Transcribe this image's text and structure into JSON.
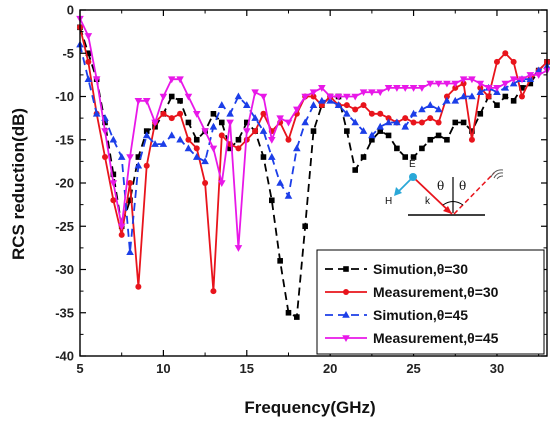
{
  "chart_data": {
    "type": "line",
    "title": "",
    "xlabel": "Frequency(GHz)",
    "ylabel": "RCS reduction(dB)",
    "xlim": [
      5,
      33
    ],
    "ylim": [
      -40,
      0
    ],
    "xticks": [
      5,
      10,
      15,
      20,
      25,
      30
    ],
    "yticks": [
      0,
      -5,
      -10,
      -15,
      -20,
      -25,
      -30,
      -35,
      -40
    ],
    "x_tick_labels": [
      "5",
      "10",
      "15",
      "20",
      "25",
      "30"
    ],
    "y_tick_labels": [
      "0",
      "-5",
      "-10",
      "-15",
      "-20",
      "-25",
      "-30",
      "-35",
      "-40"
    ],
    "grid": false,
    "legend_position": "bottom-right",
    "series": [
      {
        "name": "Simution,θ=30",
        "color": "#000000",
        "dash": "8,5",
        "marker": "square",
        "x": [
          5.0,
          5.5,
          6.0,
          6.5,
          7.0,
          7.5,
          8.0,
          8.5,
          9.0,
          9.5,
          10.0,
          10.5,
          11.0,
          11.5,
          12.0,
          12.5,
          13.0,
          13.5,
          14.0,
          14.5,
          15.0,
          15.5,
          16.0,
          16.5,
          17.0,
          17.5,
          18.0,
          18.5,
          19.0,
          19.5,
          20.0,
          20.5,
          21.0,
          21.5,
          22.0,
          22.5,
          23.0,
          23.5,
          24.0,
          24.5,
          25.0,
          25.5,
          26.0,
          26.5,
          27.0,
          27.5,
          28.0,
          28.5,
          29.0,
          29.5,
          30.0,
          30.5,
          31.0,
          31.5,
          32.0,
          32.5,
          33.0
        ],
        "y": [
          -2,
          -5,
          -8,
          -13,
          -19,
          -25,
          -22,
          -17,
          -14,
          -13.5,
          -12,
          -10,
          -10.5,
          -13,
          -15,
          -14,
          -12,
          -13,
          -16,
          -15,
          -13,
          -14,
          -17,
          -22,
          -29,
          -35,
          -35.5,
          -25,
          -14,
          -11,
          -10,
          -10,
          -14,
          -18.5,
          -17,
          -15,
          -14,
          -14.5,
          -16,
          -17,
          -17,
          -16,
          -15,
          -14.5,
          -15,
          -13,
          -13,
          -14,
          -12,
          -10,
          -11,
          -10,
          -10.5,
          -9,
          -8.5,
          -7,
          -6
        ]
      },
      {
        "name": "Measurement,θ=30",
        "color": "#e8141c",
        "dash": "",
        "marker": "circle",
        "x": [
          5.0,
          5.5,
          6.0,
          6.5,
          7.0,
          7.5,
          8.0,
          8.5,
          9.0,
          9.5,
          10.0,
          10.5,
          11.0,
          11.5,
          12.0,
          12.5,
          13.0,
          13.5,
          14.0,
          14.5,
          15.0,
          15.5,
          16.0,
          16.5,
          17.0,
          17.5,
          18.0,
          18.5,
          19.0,
          19.5,
          20.0,
          20.5,
          21.0,
          21.5,
          22.0,
          22.5,
          23.0,
          23.5,
          24.0,
          24.5,
          25.0,
          25.5,
          26.0,
          26.5,
          27.0,
          27.5,
          28.0,
          28.5,
          29.0,
          29.5,
          30.0,
          30.5,
          31.0,
          31.5,
          32.0,
          32.5,
          33.0
        ],
        "y": [
          -2,
          -6,
          -12,
          -17,
          -22,
          -26,
          -20,
          -32,
          -18,
          -13,
          -12,
          -12.5,
          -12,
          -15,
          -16,
          -20,
          -32.5,
          -14.5,
          -15.5,
          -16,
          -15,
          -14,
          -12,
          -14,
          -13,
          -15,
          -12,
          -10,
          -10,
          -11,
          -10,
          -11,
          -11,
          -11.5,
          -11,
          -12,
          -12,
          -12.5,
          -13,
          -12.5,
          -13,
          -13,
          -12.5,
          -13,
          -10,
          -9,
          -8.5,
          -15,
          -9,
          -10,
          -6,
          -5,
          -6,
          -10,
          -8,
          -7,
          -6
        ]
      },
      {
        "name": "Simution,θ=45",
        "color": "#1c3ee8",
        "dash": "8,5",
        "marker": "triangle",
        "x": [
          5.0,
          5.5,
          6.0,
          6.5,
          7.0,
          7.5,
          8.0,
          8.5,
          9.0,
          9.5,
          10.0,
          10.5,
          11.0,
          11.5,
          12.0,
          12.5,
          13.0,
          13.5,
          14.0,
          14.5,
          15.0,
          15.5,
          16.0,
          16.5,
          17.0,
          17.5,
          18.0,
          18.5,
          19.0,
          19.5,
          20.0,
          20.5,
          21.0,
          21.5,
          22.0,
          22.5,
          23.0,
          23.5,
          24.0,
          24.5,
          25.0,
          25.5,
          26.0,
          26.5,
          27.0,
          27.5,
          28.0,
          28.5,
          29.0,
          29.5,
          30.0,
          30.5,
          31.0,
          31.5,
          32.0,
          32.5,
          33.0
        ],
        "y": [
          -4,
          -8,
          -12,
          -12.5,
          -15,
          -17,
          -28,
          -18,
          -14.5,
          -15.5,
          -15.5,
          -14.5,
          -15,
          -16,
          -17,
          -17.5,
          -13.5,
          -11,
          -12,
          -10,
          -11,
          -12.5,
          -14,
          -17,
          -20,
          -21.5,
          -16,
          -13,
          -11,
          -10.5,
          -10.5,
          -11,
          -12,
          -13,
          -14,
          -14.5,
          -13.5,
          -13,
          -13,
          -13.5,
          -12,
          -11.5,
          -11,
          -11.5,
          -10.5,
          -10.5,
          -10,
          -10,
          -9.5,
          -9,
          -9.5,
          -9,
          -8.5,
          -8,
          -8,
          -7,
          -6.5
        ]
      },
      {
        "name": "Measurement,θ=45",
        "color": "#e818e8",
        "dash": "",
        "marker": "triangle-down",
        "x": [
          5.0,
          5.5,
          6.0,
          6.5,
          7.0,
          7.5,
          8.0,
          8.5,
          9.0,
          9.5,
          10.0,
          10.5,
          11.0,
          11.5,
          12.0,
          12.5,
          13.0,
          13.5,
          14.0,
          14.5,
          15.0,
          15.5,
          16.0,
          16.5,
          17.0,
          17.5,
          18.0,
          18.5,
          19.0,
          19.5,
          20.0,
          20.5,
          21.0,
          21.5,
          22.0,
          22.5,
          23.0,
          23.5,
          24.0,
          24.5,
          25.0,
          25.5,
          26.0,
          26.5,
          27.0,
          27.5,
          28.0,
          28.5,
          29.0,
          29.5,
          30.0,
          30.5,
          31.0,
          31.5,
          32.0,
          32.5,
          33.0
        ],
        "y": [
          -1,
          -3,
          -8,
          -14,
          -20,
          -25,
          -17,
          -10.5,
          -10.5,
          -13,
          -10,
          -8,
          -8,
          -10,
          -12,
          -14,
          -16,
          -20,
          -13,
          -27.5,
          -14,
          -9.5,
          -10,
          -15,
          -12.5,
          -13,
          -11.5,
          -10,
          -9.5,
          -9,
          -10,
          -10,
          -10,
          -10,
          -9.5,
          -9.5,
          -9.5,
          -9,
          -9,
          -9,
          -9,
          -9,
          -8.5,
          -8.5,
          -8.5,
          -8.5,
          -8,
          -8,
          -8.5,
          -9,
          -9,
          -8.5,
          -8,
          -8,
          -7.5,
          -7.5,
          -7
        ]
      }
    ],
    "inset_labels": {
      "e": "E",
      "h": "H",
      "k": "k",
      "theta_left": "θ",
      "theta_right": "θ"
    }
  }
}
